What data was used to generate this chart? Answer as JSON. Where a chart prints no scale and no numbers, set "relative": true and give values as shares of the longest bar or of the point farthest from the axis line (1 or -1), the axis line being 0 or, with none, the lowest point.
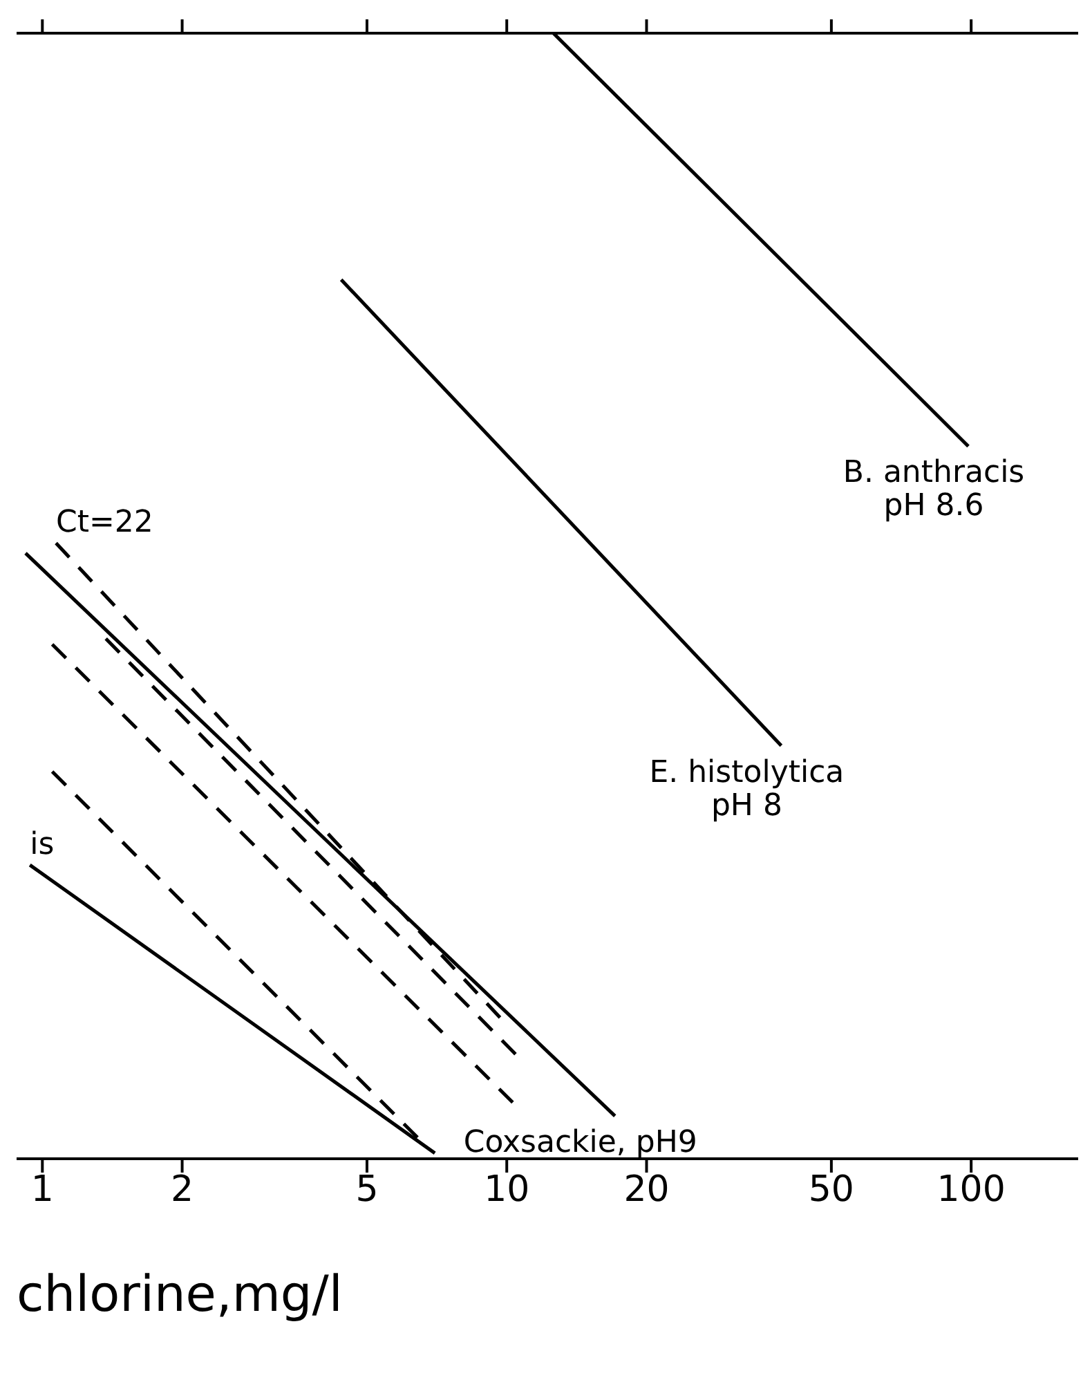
{
  "chart_data": {
    "type": "line",
    "relative": true,
    "xlabel": "chlorine,mg/l",
    "log": "x",
    "xlim": [
      0.88,
      170
    ],
    "xticks": [
      1,
      2,
      5,
      10,
      20,
      50,
      100
    ],
    "grid": false,
    "marker": "none",
    "series": [
      {
        "name": "B. anthracis\npH 8.6",
        "color": "#000000",
        "line_style": "solid",
        "x": [
          12.6,
          98.6
        ],
        "values": [
          1,
          0.633
        ]
      },
      {
        "name": "E. histolytica\npH 8",
        "color": "#000000",
        "line_style": "solid",
        "x": [
          4.4,
          39
        ],
        "values": [
          0.781,
          0.367
        ]
      },
      {
        "name": "Coxsackie, pH9",
        "color": "#000000",
        "line_style": "solid",
        "x": [
          0.92,
          17.1
        ],
        "values": [
          0.538,
          0.038
        ]
      },
      {
        "color": "#000000",
        "line_style": "solid",
        "x": [
          0.94,
          7.0
        ],
        "values": [
          0.261,
          0.005
        ]
      },
      {
        "color": "#000000",
        "line_style": "dashed",
        "x": [
          1.07,
          9.9
        ],
        "values": [
          0.547,
          0.121
        ]
      },
      {
        "color": "#000000",
        "line_style": "dashed",
        "x": [
          1.37,
          10.5
        ],
        "values": [
          0.462,
          0.092
        ]
      },
      {
        "color": "#000000",
        "line_style": "dashed",
        "x": [
          1.05,
          10.3
        ],
        "values": [
          0.457,
          0.05
        ]
      },
      {
        "color": "#000000",
        "line_style": "dashed",
        "x": [
          1.05,
          6.6
        ],
        "values": [
          0.344,
          0.014
        ]
      }
    ],
    "annotations": [
      {
        "text": "Ct=22",
        "x": 1.07,
        "y": 0.547
      },
      {
        "text": "is",
        "x": 0.94,
        "y": 0.261
      }
    ]
  }
}
